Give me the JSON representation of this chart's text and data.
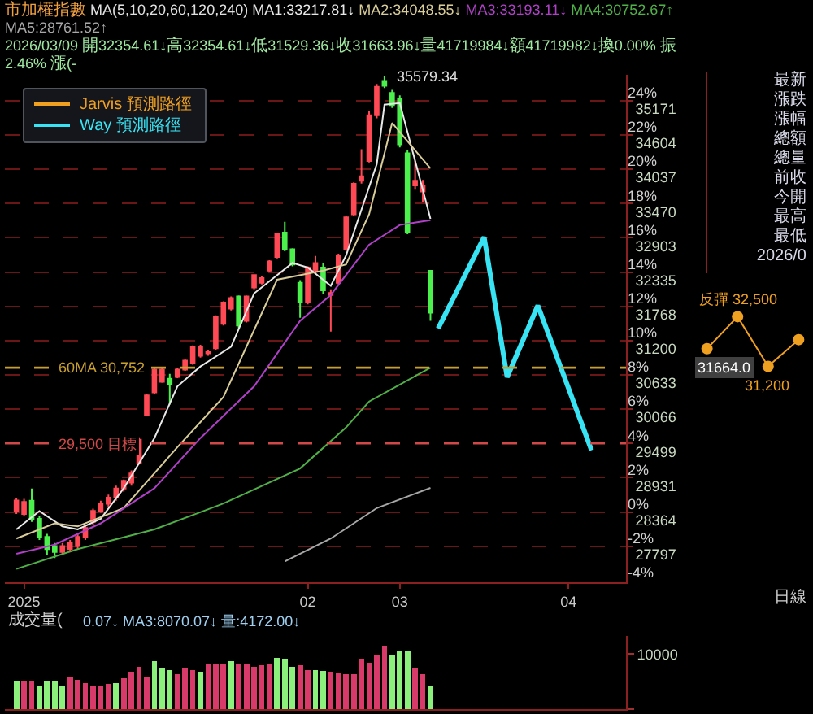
{
  "chart_data": [
    {
      "type": "candlestick",
      "title": "市加權指數",
      "subtitle": "MA(5,10,20,60,120,240)",
      "annotations": [
        "2026/03/09 開32354.61↓高32354.61↓低31529.36↓收31663.96↓量41719984↓額41719982↓換0.00% 振2.46% 漲(-",
        "日線",
        "35579.34"
      ],
      "categories": [
        null,
        "2025",
        null,
        null,
        null,
        null,
        null,
        null,
        null,
        null,
        null,
        null,
        null,
        null,
        null,
        null,
        null,
        null,
        null,
        null,
        null,
        null,
        null,
        null,
        null,
        null,
        null,
        null,
        null,
        null,
        null,
        null,
        null,
        null,
        null,
        null,
        null,
        null,
        "02",
        null,
        null,
        null,
        null,
        null,
        null,
        null,
        null,
        null,
        null,
        null,
        "03",
        null,
        null,
        null,
        null,
        null,
        null,
        null,
        null,
        null,
        null,
        null,
        null,
        null,
        null,
        null,
        null,
        null,
        null,
        null,
        null,
        null,
        "04",
        null,
        null,
        null,
        null,
        null,
        null,
        null
      ],
      "ohlc": [
        [
          28380,
          28600,
          28330,
          28554
        ],
        [
          28330,
          28580,
          28300,
          28530
        ],
        [
          28550,
          28750,
          28200,
          28250
        ],
        [
          28250,
          28300,
          27900,
          27950
        ],
        [
          27950,
          28000,
          27650,
          27750
        ],
        [
          27800,
          27850,
          27600,
          27700
        ],
        [
          27700,
          27850,
          27650,
          27800
        ],
        [
          27750,
          27900,
          27700,
          27850
        ],
        [
          27800,
          28000,
          27750,
          27950
        ],
        [
          27950,
          28150,
          27900,
          28100
        ],
        [
          28200,
          28420,
          28150,
          28380
        ],
        [
          28380,
          28550,
          28350,
          28500
        ],
        [
          28500,
          28650,
          28450,
          28600
        ],
        [
          28600,
          28800,
          28550,
          28750
        ],
        [
          28750,
          28900,
          28700,
          28880
        ],
        [
          28850,
          29050,
          28800,
          29000
        ],
        [
          29180,
          29600,
          29150,
          29560
        ],
        [
          29965,
          30320,
          29950,
          30293
        ],
        [
          30343,
          30750,
          30320,
          30720
        ],
        [
          30520,
          30750,
          30500,
          30720
        ],
        [
          30570,
          30650,
          30140,
          30470
        ],
        [
          30600,
          30750,
          30580,
          30720
        ],
        [
          30720,
          30900,
          30700,
          30870
        ],
        [
          30820,
          31120,
          30800,
          31100
        ],
        [
          30950,
          31130,
          30920,
          31100
        ],
        [
          30990,
          31050,
          30950,
          31010
        ],
        [
          31074,
          31620,
          31050,
          31603
        ],
        [
          31477,
          31850,
          31450,
          31830
        ],
        [
          31730,
          31930,
          31700,
          31906
        ],
        [
          31931,
          31950,
          31400,
          31452
        ],
        [
          31528,
          31950,
          31500,
          31931
        ],
        [
          32080,
          32300,
          32050,
          32284
        ],
        [
          32158,
          32260,
          32130,
          32233
        ],
        [
          32360,
          32530,
          32340,
          32510
        ],
        [
          32586,
          32990,
          32560,
          32964
        ],
        [
          32990,
          33166,
          32680,
          32712
        ],
        [
          32712,
          32730,
          32430,
          32460
        ],
        [
          32158,
          32200,
          31578,
          31830
        ],
        [
          31830,
          32430,
          31800,
          32410
        ],
        [
          32360,
          32600,
          32300,
          32485
        ],
        [
          32410,
          32480,
          31980,
          32032
        ],
        [
          31956,
          32050,
          31351,
          31990
        ],
        [
          32158,
          32640,
          32130,
          32611
        ],
        [
          32712,
          33260,
          32690,
          33240
        ],
        [
          33290,
          33820,
          33270,
          33796
        ],
        [
          33846,
          34370,
          33800,
          33920
        ],
        [
          34174,
          35000,
          34150,
          34930
        ],
        [
          34930,
          35450,
          34880,
          35400
        ],
        [
          35500,
          35579.34,
          35380,
          35420
        ],
        [
          35300,
          35350,
          35050,
          35100
        ],
        [
          35200,
          35260,
          34400,
          34450
        ],
        [
          34300,
          34350,
          32960,
          32990
        ],
        [
          33770,
          34170,
          33700,
          33846
        ],
        [
          33670,
          33860,
          33493,
          33770
        ],
        [
          32354.61,
          32354.61,
          31529.36,
          31663.96
        ],
        null,
        null,
        null,
        null,
        null,
        null,
        null,
        null,
        null,
        null,
        null,
        null,
        null,
        null,
        null,
        null,
        null,
        null,
        null,
        null,
        null,
        null,
        null,
        null,
        null
      ],
      "series": [
        {
          "type": "line",
          "name": "MA1:33217.81↓",
          "color": "#e8e8e8",
          "values": [
            28075,
            null,
            null,
            28378,
            null,
            null,
            28126,
            null,
            28075,
            null,
            null,
            28252,
            null,
            null,
            28756,
            null,
            null,
            null,
            29587,
            null,
            null,
            30444,
            null,
            null,
            30772,
            null,
            null,
            null,
            31100,
            null,
            null,
            31981,
            null,
            null,
            null,
            null,
            32485,
            null,
            32410,
            null,
            null,
            32107,
            null,
            32611,
            null,
            null,
            null,
            34123,
            35106,
            null,
            35131,
            null,
            null,
            null,
            33218,
            null,
            null,
            null,
            null,
            null,
            null,
            null,
            null,
            null,
            null,
            null,
            null,
            null,
            null,
            null,
            null,
            null,
            null,
            null,
            null,
            null,
            null,
            null,
            null,
            null
          ]
        },
        {
          "type": "line",
          "name": "MA2:34048.55↓",
          "color": "#d8cc98",
          "values": [
            27924,
            null,
            null,
            null,
            null,
            28176,
            null,
            null,
            28126,
            null,
            null,
            null,
            null,
            null,
            28428,
            null,
            null,
            null,
            null,
            null,
            null,
            29436,
            null,
            null,
            null,
            null,
            null,
            30268,
            null,
            null,
            null,
            null,
            null,
            null,
            32208,
            null,
            null,
            null,
            null,
            null,
            32359,
            null,
            null,
            32460,
            null,
            null,
            33292,
            null,
            null,
            34804,
            null,
            null,
            34350,
            null,
            34049,
            null,
            null,
            null,
            null,
            null,
            null,
            null,
            null,
            null,
            null,
            null,
            null,
            null,
            null,
            null,
            null,
            null,
            null,
            null,
            null,
            null,
            null,
            null,
            null,
            null
          ]
        },
        {
          "type": "line",
          "name": "MA3:33193.11↓",
          "color": "#b040c8",
          "values": [
            27672,
            null,
            null,
            null,
            null,
            27823,
            null,
            null,
            null,
            null,
            null,
            28176,
            null,
            null,
            null,
            null,
            null,
            null,
            28756,
            null,
            null,
            null,
            null,
            null,
            29587,
            null,
            null,
            null,
            null,
            null,
            null,
            30444,
            null,
            null,
            null,
            null,
            null,
            31528,
            null,
            null,
            null,
            31956,
            null,
            null,
            null,
            null,
            32788,
            null,
            null,
            null,
            33115,
            null,
            null,
            null,
            33193,
            null,
            null,
            null,
            null,
            null,
            null,
            null,
            null,
            null,
            null,
            null,
            null,
            null,
            null,
            null,
            null,
            null,
            null,
            null,
            null,
            null,
            null,
            null,
            null,
            null
          ]
        },
        {
          "type": "line",
          "name": "MA4:30752.67↑",
          "color": "#50b048",
          "values": [
            27420,
            null,
            null,
            null,
            null,
            null,
            null,
            null,
            27748,
            null,
            null,
            null,
            null,
            null,
            null,
            null,
            null,
            null,
            28075,
            null,
            null,
            null,
            null,
            null,
            null,
            null,
            null,
            28504,
            null,
            null,
            null,
            null,
            null,
            null,
            null,
            null,
            null,
            29083,
            null,
            null,
            null,
            null,
            null,
            29764,
            null,
            null,
            30192,
            null,
            null,
            null,
            null,
            null,
            null,
            null,
            30753,
            null,
            null,
            null,
            null,
            null,
            null,
            null,
            null,
            null,
            null,
            null,
            null,
            null,
            null,
            null,
            null,
            null,
            null,
            null,
            null,
            null,
            null,
            null,
            null,
            null
          ]
        },
        {
          "type": "line",
          "name": "MA5:28761.52↑",
          "color": "#a8a8a8",
          "values": [
            null,
            null,
            null,
            null,
            null,
            null,
            null,
            null,
            null,
            null,
            null,
            null,
            null,
            null,
            null,
            null,
            null,
            null,
            null,
            null,
            null,
            null,
            null,
            null,
            null,
            null,
            null,
            null,
            null,
            null,
            null,
            null,
            null,
            null,
            null,
            27546,
            null,
            null,
            null,
            null,
            null,
            27924,
            null,
            null,
            null,
            null,
            null,
            28428,
            null,
            null,
            null,
            null,
            null,
            null,
            28762,
            null,
            null,
            null,
            null,
            null,
            null,
            null,
            null,
            null,
            null,
            null,
            null,
            null,
            null,
            null,
            null,
            null,
            null,
            null,
            null,
            null,
            null,
            null,
            null,
            null
          ]
        },
        {
          "type": "line",
          "name": "Way 預測路徑",
          "color": "#38e4f4",
          "values": [
            null,
            null,
            null,
            null,
            null,
            null,
            null,
            null,
            null,
            null,
            null,
            null,
            null,
            null,
            null,
            null,
            null,
            null,
            null,
            null,
            null,
            null,
            null,
            null,
            null,
            null,
            null,
            null,
            null,
            null,
            null,
            null,
            null,
            null,
            null,
            null,
            null,
            null,
            null,
            null,
            null,
            null,
            null,
            null,
            null,
            null,
            null,
            null,
            null,
            null,
            null,
            null,
            null,
            null,
            null,
            31402,
            null,
            null,
            null,
            null,
            null,
            32914,
            null,
            null,
            30595,
            null,
            null,
            null,
            31780,
            null,
            null,
            null,
            null,
            null,
            null,
            29386,
            null,
            null,
            null,
            null
          ]
        }
      ],
      "ylim": [
        27200,
        35600
      ],
      "yticks": [
        35171,
        34604,
        34037,
        33470,
        32903,
        32335,
        31768,
        31200,
        30633,
        30066,
        29499,
        28931,
        28364,
        27797
      ],
      "y2lim": [
        -4.1,
        25.51
      ],
      "y2ticks": [
        {
          "value": -4,
          "label": "-4%"
        },
        {
          "value": -2,
          "label": "-2%"
        },
        {
          "value": 0,
          "label": "0%"
        },
        {
          "value": 2,
          "label": "2%"
        },
        {
          "value": 4,
          "label": "4%"
        },
        {
          "value": 6,
          "label": "6%"
        },
        {
          "value": 8,
          "label": "8%"
        },
        {
          "value": 10,
          "label": "10%"
        },
        {
          "value": 12,
          "label": "12%"
        },
        {
          "value": 14,
          "label": "14%"
        },
        {
          "value": 16,
          "label": "16%"
        },
        {
          "value": 18,
          "label": "18%"
        },
        {
          "value": 20,
          "label": "20%"
        },
        {
          "value": 22,
          "label": "22%"
        },
        {
          "value": 24,
          "label": "24%"
        }
      ],
      "ref_lines": [
        {
          "axis": "y",
          "value": 30752,
          "label": "60MA 30,752",
          "color": "#c8a030",
          "line_style": "dashed"
        },
        {
          "axis": "y",
          "value": 29500,
          "label": "29,500 目標",
          "color": "#d04848",
          "line_style": "dashed"
        }
      ],
      "grid": "y",
      "legend": "top left"
    },
    {
      "type": "bar",
      "title": "成交量(",
      "annotations": [
        "0.07↓ MA3:8070.07↓ 量:4172.00↓"
      ],
      "categories": [
        null,
        "2025",
        null,
        null,
        null,
        null,
        null,
        null,
        null,
        null,
        null,
        null,
        null,
        null,
        null,
        null,
        null,
        null,
        null,
        null,
        null,
        null,
        null,
        null,
        null,
        null,
        null,
        null,
        null,
        null,
        null,
        null,
        null,
        null,
        null,
        null,
        null,
        null,
        "02",
        null,
        null,
        null,
        null,
        null,
        null,
        null,
        null,
        null,
        null,
        null,
        "03",
        null,
        null,
        null,
        null,
        null,
        null,
        null,
        null,
        null,
        null,
        null,
        null,
        null,
        null,
        null,
        null,
        null,
        null,
        null,
        null,
        null,
        "04",
        null,
        null,
        null,
        null,
        null,
        null,
        null
      ],
      "values": [
        5160,
        5000,
        5000,
        4360,
        5160,
        5000,
        4360,
        5710,
        5320,
        4760,
        4360,
        4360,
        4520,
        4760,
        5560,
        6750,
        7700,
        5950,
        8730,
        7540,
        7140,
        6350,
        7540,
        7140,
        6750,
        8330,
        8170,
        8170,
        8730,
        8170,
        8170,
        7700,
        7940,
        8330,
        9290,
        9130,
        7700,
        7940,
        7140,
        7140,
        6900,
        6750,
        6590,
        6350,
        6350,
        9130,
        8490,
        9920,
        11510,
        9920,
        10710,
        10560,
        7540,
        6350,
        4172,
        null,
        null,
        null,
        null,
        null,
        null,
        null,
        null,
        null,
        null,
        null,
        null,
        null,
        null,
        null,
        null,
        null,
        null,
        null,
        null,
        null,
        null,
        null,
        null,
        null
      ],
      "colors": [
        "#8cf07c",
        "#d83a6a",
        "#d83a6a",
        "#8cf07c",
        "#8cf07c",
        "#8cf07c",
        "#8cf07c",
        "#d83a6a",
        "#d83a6a",
        "#d83a6a",
        "#d83a6a",
        "#d83a6a",
        "#d83a6a",
        "#8cf07c",
        "#d83a6a",
        "#d83a6a",
        "#d83a6a",
        "#d83a6a",
        "#8cf07c",
        "#8cf07c",
        "#8cf07c",
        "#d83a6a",
        "#d83a6a",
        "#d83a6a",
        "#8cf07c",
        "#d83a6a",
        "#d83a6a",
        "#d83a6a",
        "#8cf07c",
        "#d83a6a",
        "#d83a6a",
        "#d83a6a",
        "#d83a6a",
        "#d83a6a",
        "#8cf07c",
        "#8cf07c",
        "#8cf07c",
        "#d83a6a",
        "#d83a6a",
        "#8cf07c",
        "#8cf07c",
        "#d83a6a",
        "#d83a6a",
        "#d83a6a",
        "#d83a6a",
        "#d83a6a",
        "#d83a6a",
        "#d83a6a",
        "#d83a6a",
        "#8cf07c",
        "#8cf07c",
        "#8cf07c",
        "#d83a6a",
        "#d83a6a",
        "#8cf07c",
        null,
        null,
        null,
        null,
        null,
        null,
        null,
        null,
        null,
        null,
        null,
        null,
        null,
        null,
        null,
        null,
        null,
        null,
        null,
        null,
        null,
        null,
        null,
        null,
        null
      ],
      "ylim": [
        0,
        13300
      ],
      "yticks": [
        0,
        10000
      ],
      "tick_labels": "y"
    },
    {
      "type": "line",
      "categories": [
        null,
        null,
        null,
        null
      ],
      "series": [
        {
          "name": "Jarvis 預測路徑",
          "color": "#f0a020",
          "values": [
            31664,
            32500,
            31200,
            31900
          ],
          "value_labels": [
            "31664.0",
            "反彈 32,500",
            "31,200",
            null
          ]
        }
      ],
      "marker": "circle"
    },
    {
      "type": "other",
      "annotations": [
        "最新",
        "漲跌",
        "漲幅",
        "總額",
        "總量",
        "前收",
        "今開",
        "最高",
        "最低",
        "2026/0"
      ]
    }
  ]
}
